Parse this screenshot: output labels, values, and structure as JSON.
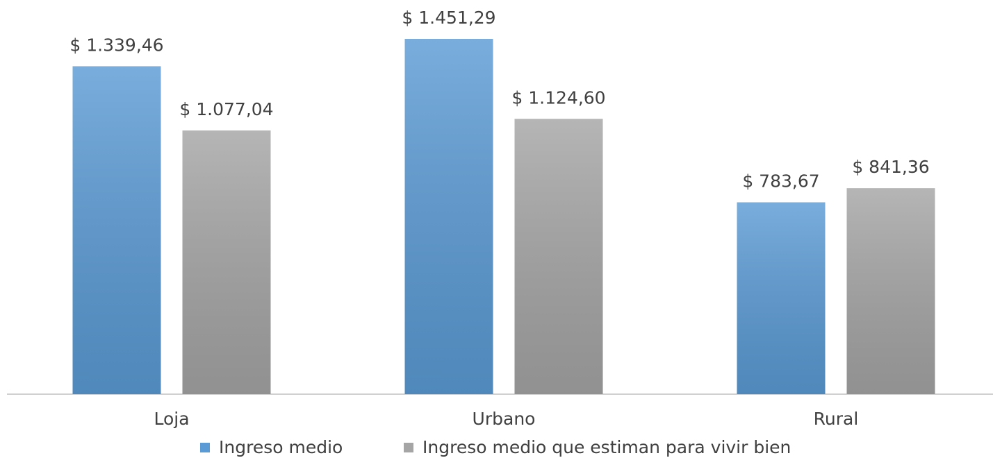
{
  "chart_data": {
    "type": "bar",
    "categories": [
      "Loja",
      "Urbano",
      "Rural"
    ],
    "series": [
      {
        "name": "Ingreso medio",
        "color": "#5b9bd5",
        "values": [
          1339.46,
          1451.29,
          783.67
        ],
        "value_labels": [
          "$ 1.339,46",
          "$ 1.451,29",
          "$ 783,67"
        ]
      },
      {
        "name": "Ingreso medio que estiman para vivir bien",
        "color": "#a5a5a5",
        "values": [
          1077.04,
          1124.6,
          841.36
        ],
        "value_labels": [
          "$ 1.077,04",
          "$ 1.124,60",
          "$ 841,36"
        ]
      }
    ],
    "legend": "bottom"
  }
}
